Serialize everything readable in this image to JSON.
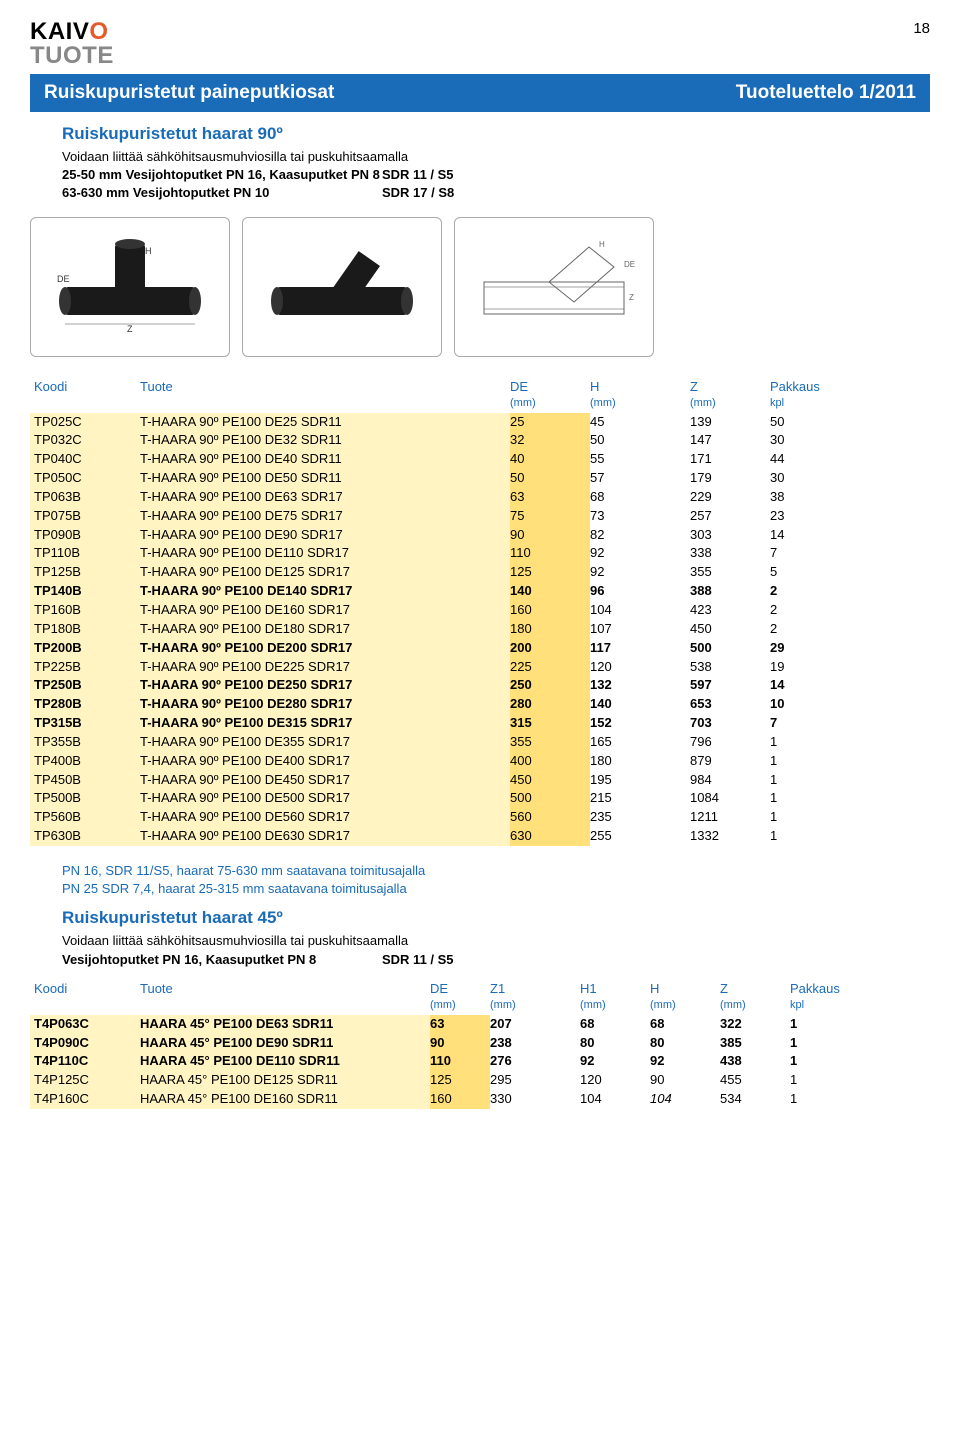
{
  "page_number": "18",
  "logo": {
    "line1_pre": "KAIV",
    "line1_o": "O",
    "line2": "TUOTE"
  },
  "title_bar": {
    "left": "Ruiskupuristetut paineputkiosat",
    "right": "Tuoteluettelo 1/2011",
    "bg_color": "#1a6bb8",
    "text_color": "#ffffff"
  },
  "section1": {
    "title": "Ruiskupuristetut haarat 90º",
    "subtitle": "Voidaan liittää sähköhitsausmuhviosilla tai puskuhitsaamalla",
    "rows": [
      {
        "label": "25-50 mm Vesijohtoputket PN 16, Kaasuputket PN 8",
        "value": "SDR 11 / S5"
      },
      {
        "label": "63-630 mm Vesijohtoputket PN 10",
        "value": "SDR 17 / S8"
      }
    ]
  },
  "colors": {
    "header_blue": "#1a6bb8",
    "hl_light": "#fff4c2",
    "hl_dark": "#ffe07a",
    "logo_orange": "#e55a2b",
    "logo_gray": "#888888"
  },
  "table1": {
    "headers": {
      "koodi": "Koodi",
      "tuote": "Tuote",
      "de": "DE",
      "de_sub": "(mm)",
      "h": "H",
      "h_sub": "(mm)",
      "z": "Z",
      "z_sub": "(mm)",
      "pak": "Pakkaus",
      "pak_sub": "kpl"
    },
    "rows": [
      {
        "code": "TP025C",
        "tuote": "T-HAARA 90º PE100 DE25 SDR11",
        "de": "25",
        "h": "45",
        "z": "139",
        "pak": "50",
        "bold": false
      },
      {
        "code": "TP032C",
        "tuote": "T-HAARA 90º PE100 DE32 SDR11",
        "de": "32",
        "h": "50",
        "z": "147",
        "pak": "30",
        "bold": false
      },
      {
        "code": "TP040C",
        "tuote": "T-HAARA 90º PE100 DE40 SDR11",
        "de": "40",
        "h": "55",
        "z": "171",
        "pak": "44",
        "bold": false
      },
      {
        "code": "TP050C",
        "tuote": "T-HAARA 90º PE100 DE50 SDR11",
        "de": "50",
        "h": "57",
        "z": "179",
        "pak": "30",
        "bold": false
      },
      {
        "code": "TP063B",
        "tuote": "T-HAARA 90º PE100 DE63 SDR17",
        "de": "63",
        "h": "68",
        "z": "229",
        "pak": "38",
        "bold": false
      },
      {
        "code": "TP075B",
        "tuote": "T-HAARA 90º PE100 DE75 SDR17",
        "de": "75",
        "h": "73",
        "z": "257",
        "pak": "23",
        "bold": false
      },
      {
        "code": "TP090B",
        "tuote": "T-HAARA 90º PE100 DE90 SDR17",
        "de": "90",
        "h": "82",
        "z": "303",
        "pak": "14",
        "bold": false
      },
      {
        "code": "TP110B",
        "tuote": "T-HAARA 90º PE100 DE110 SDR17",
        "de": "110",
        "h": "92",
        "z": "338",
        "pak": "7",
        "bold": false
      },
      {
        "code": "TP125B",
        "tuote": "T-HAARA 90º PE100 DE125 SDR17",
        "de": "125",
        "h": "92",
        "z": "355",
        "pak": "5",
        "bold": false
      },
      {
        "code": "TP140B",
        "tuote": "T-HAARA 90º PE100 DE140 SDR17",
        "de": "140",
        "h": "96",
        "z": "388",
        "pak": "2",
        "bold": true
      },
      {
        "code": "TP160B",
        "tuote": "T-HAARA 90º PE100 DE160 SDR17",
        "de": "160",
        "h": "104",
        "z": "423",
        "pak": "2",
        "bold": false
      },
      {
        "code": "TP180B",
        "tuote": "T-HAARA 90º PE100 DE180 SDR17",
        "de": "180",
        "h": "107",
        "z": "450",
        "pak": "2",
        "bold": false
      },
      {
        "code": "TP200B",
        "tuote": "T-HAARA 90º PE100 DE200 SDR17",
        "de": "200",
        "h": "117",
        "z": "500",
        "pak": "29",
        "bold": true
      },
      {
        "code": "TP225B",
        "tuote": "T-HAARA 90º PE100 DE225 SDR17",
        "de": "225",
        "h": "120",
        "z": "538",
        "pak": "19",
        "bold": false
      },
      {
        "code": "TP250B",
        "tuote": "T-HAARA 90º PE100 DE250 SDR17",
        "de": "250",
        "h": "132",
        "z": "597",
        "pak": "14",
        "bold": true
      },
      {
        "code": "TP280B",
        "tuote": "T-HAARA 90º PE100 DE280 SDR17",
        "de": "280",
        "h": "140",
        "z": "653",
        "pak": "10",
        "bold": true
      },
      {
        "code": "TP315B",
        "tuote": "T-HAARA 90º PE100 DE315 SDR17",
        "de": "315",
        "h": "152",
        "z": "703",
        "pak": "7",
        "bold": true
      },
      {
        "code": "TP355B",
        "tuote": "T-HAARA 90º PE100 DE355 SDR17",
        "de": "355",
        "h": "165",
        "z": "796",
        "pak": "1",
        "bold": false
      },
      {
        "code": "TP400B",
        "tuote": "T-HAARA 90º PE100 DE400 SDR17",
        "de": "400",
        "h": "180",
        "z": "879",
        "pak": "1",
        "bold": false
      },
      {
        "code": "TP450B",
        "tuote": "T-HAARA 90º PE100 DE450 SDR17",
        "de": "450",
        "h": "195",
        "z": "984",
        "pak": "1",
        "bold": false
      },
      {
        "code": "TP500B",
        "tuote": "T-HAARA 90º PE100 DE500 SDR17",
        "de": "500",
        "h": "215",
        "z": "1084",
        "pak": "1",
        "bold": false
      },
      {
        "code": "TP560B",
        "tuote": "T-HAARA 90º PE100 DE560 SDR17",
        "de": "560",
        "h": "235",
        "z": "1211",
        "pak": "1",
        "bold": false
      },
      {
        "code": "TP630B",
        "tuote": "T-HAARA 90º PE100 DE630 SDR17",
        "de": "630",
        "h": "255",
        "z": "1332",
        "pak": "1",
        "bold": false
      }
    ]
  },
  "footnotes": [
    "PN 16, SDR 11/S5, haarat 75-630 mm saatavana toimitusajalla",
    "PN 25 SDR 7,4, haarat 25-315 mm saatavana toimitusajalla"
  ],
  "section2": {
    "title": "Ruiskupuristetut haarat 45º",
    "subtitle": "Voidaan liittää sähköhitsausmuhviosilla tai puskuhitsaamalla",
    "rows": [
      {
        "label": "Vesijohtoputket PN 16, Kaasuputket PN 8",
        "value": "SDR 11 / S5"
      }
    ]
  },
  "table2": {
    "headers": {
      "koodi": "Koodi",
      "tuote": "Tuote",
      "de": "DE",
      "de_sub": "(mm)",
      "z1": "Z1",
      "z1_sub": "(mm)",
      "h1": "H1",
      "h1_sub": "(mm)",
      "h": "H",
      "h_sub": "(mm)",
      "z": "Z",
      "z_sub": "(mm)",
      "pak": "Pakkaus",
      "pak_sub": "kpl"
    },
    "rows": [
      {
        "code": "T4P063C",
        "tuote": "HAARA 45° PE100 DE63 SDR11",
        "de": "63",
        "z1": "207",
        "h1": "68",
        "h": "68",
        "z": "322",
        "pak": "1",
        "bold": true,
        "h_italic": false
      },
      {
        "code": "T4P090C",
        "tuote": "HAARA 45° PE100 DE90 SDR11",
        "de": "90",
        "z1": "238",
        "h1": "80",
        "h": "80",
        "z": "385",
        "pak": "1",
        "bold": true,
        "h_italic": false
      },
      {
        "code": "T4P110C",
        "tuote": "HAARA 45° PE100 DE110 SDR11",
        "de": "110",
        "z1": "276",
        "h1": "92",
        "h": "92",
        "z": "438",
        "pak": "1",
        "bold": true,
        "h_italic": false
      },
      {
        "code": "T4P125C",
        "tuote": "HAARA 45° PE100 DE125 SDR11",
        "de": "125",
        "z1": "295",
        "h1": "120",
        "h": "90",
        "z": "455",
        "pak": "1",
        "bold": false,
        "h_italic": false
      },
      {
        "code": "T4P160C",
        "tuote": "HAARA 45° PE100 DE160 SDR11",
        "de": "160",
        "z1": "330",
        "h1": "104",
        "h": "104",
        "z": "534",
        "pak": "1",
        "bold": false,
        "h_italic": true
      }
    ]
  }
}
